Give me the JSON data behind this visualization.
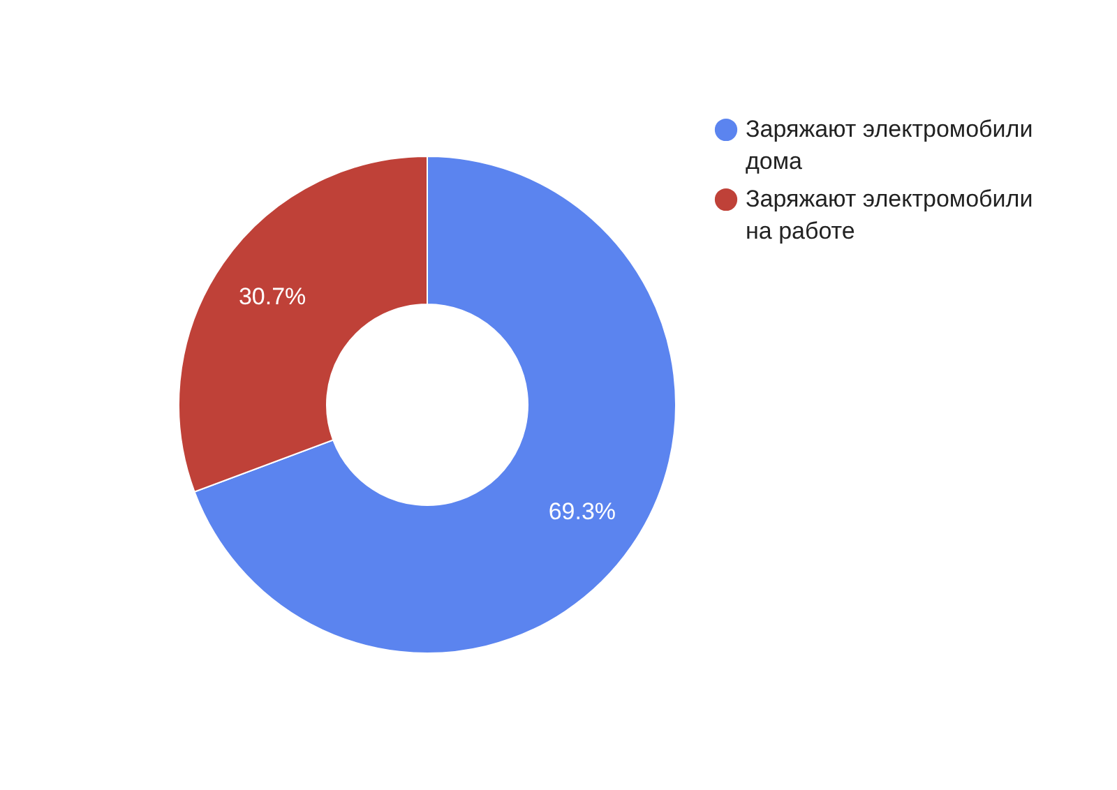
{
  "chart_data": {
    "type": "donut",
    "categories": [
      "Заряжают электромобили дома",
      "Заряжают электромобили на работе"
    ],
    "values": [
      69.3,
      30.7
    ],
    "colors": [
      "#5b84ef",
      "#bf4138"
    ],
    "value_labels": [
      "69.3%",
      "30.7%"
    ],
    "legend": "right"
  }
}
